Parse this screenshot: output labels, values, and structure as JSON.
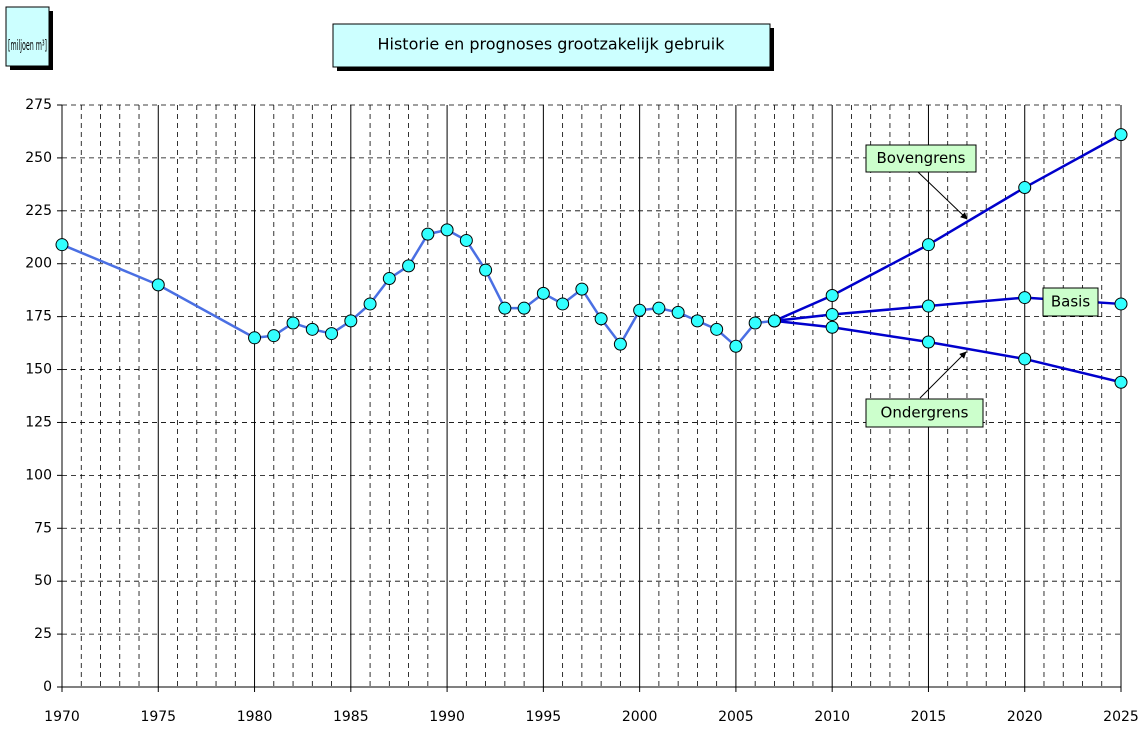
{
  "chart_data": {
    "type": "line",
    "title": "Historie en prognoses grootzakelijk gebruik",
    "ylabel": "[miljoen m³]",
    "xlim": [
      1970,
      2025
    ],
    "ylim": [
      0,
      275
    ],
    "xticks": [
      1970,
      1975,
      1980,
      1985,
      1990,
      1995,
      2000,
      2005,
      2010,
      2015,
      2020,
      2025
    ],
    "xminorticks": [
      1971,
      1972,
      1973,
      1974,
      1976,
      1977,
      1978,
      1979,
      1981,
      1982,
      1983,
      1984,
      1986,
      1987,
      1988,
      1989,
      1991,
      1992,
      1993,
      1994,
      1996,
      1997,
      1998,
      1999,
      2001,
      2002,
      2003,
      2004,
      2006,
      2007,
      2008,
      2009,
      2011,
      2012,
      2013,
      2014,
      2016,
      2017,
      2018,
      2019,
      2021,
      2022,
      2023,
      2024
    ],
    "yticks": [
      0,
      25,
      50,
      75,
      100,
      125,
      150,
      175,
      200,
      225,
      250,
      275
    ],
    "grid": true,
    "marker_color": "#33ffff",
    "series": [
      {
        "color": "#4a6fe3",
        "x": [
          1970,
          1975,
          1980,
          1981,
          1982,
          1983,
          1984,
          1985,
          1986,
          1987,
          1988,
          1989,
          1990,
          1991,
          1992,
          1993,
          1994,
          1995,
          1996,
          1997,
          1998,
          1999,
          2000,
          2001,
          2002,
          2003,
          2004,
          2005,
          2006,
          2007
        ],
        "values": [
          209,
          190,
          165,
          166,
          172,
          169,
          167,
          173,
          181,
          193,
          199,
          214,
          216,
          211,
          197,
          179,
          179,
          186,
          181,
          188,
          174,
          162,
          178,
          179,
          177,
          173,
          169,
          161,
          172,
          173
        ]
      },
      {
        "name": "Bovengrens",
        "color": "#0000cc",
        "x": [
          2007,
          2010,
          2015,
          2020,
          2025
        ],
        "values": [
          173,
          185,
          209,
          236,
          261
        ]
      },
      {
        "name": "Basis",
        "color": "#0000cc",
        "x": [
          2007,
          2010,
          2015,
          2020,
          2025
        ],
        "values": [
          173,
          176,
          180,
          184,
          181
        ]
      },
      {
        "name": "Ondergrens",
        "color": "#0000cc",
        "x": [
          2007,
          2010,
          2015,
          2020,
          2025
        ],
        "values": [
          173,
          170,
          163,
          155,
          144
        ]
      }
    ]
  }
}
